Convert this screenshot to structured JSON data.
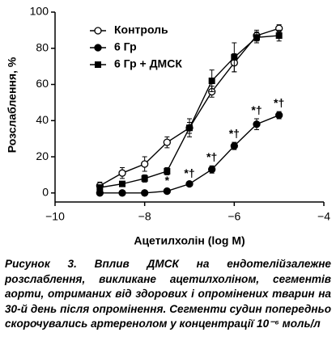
{
  "chart_data": {
    "type": "line",
    "ylabel": "Розслаблення, %",
    "xlabel": "Ацетилхолін (log M)",
    "x": [
      -9,
      -8.5,
      -8,
      -7.5,
      -7,
      -6.5,
      -6,
      -5.5,
      -5
    ],
    "xlim": [
      -10,
      -4
    ],
    "xticks": [
      {
        "value": -10,
        "label": "−10"
      },
      {
        "value": -8,
        "label": "−8"
      },
      {
        "value": -6,
        "label": "−6"
      },
      {
        "value": -4,
        "label": "−4"
      }
    ],
    "ylim": [
      -5,
      100
    ],
    "yticks": [
      0,
      20,
      40,
      60,
      80,
      100
    ],
    "grid": false,
    "legend": "upper left",
    "series": [
      {
        "name": "Контроль",
        "color": "#000000",
        "marker": "open-circle",
        "values": [
          4,
          11,
          16,
          28,
          36,
          56,
          72,
          87,
          91
        ],
        "errors": [
          2,
          3,
          4,
          3,
          3,
          3,
          5,
          3,
          2
        ]
      },
      {
        "name": "6 Гр",
        "color": "#000000",
        "marker": "filled-circle",
        "values": [
          0,
          0,
          0,
          1,
          5,
          13,
          26,
          38,
          43
        ],
        "errors": [
          1,
          1,
          1,
          1,
          1,
          2,
          2,
          3,
          2
        ],
        "point_annotations": [
          null,
          null,
          null,
          "*",
          "*†",
          "*†",
          "*†",
          "*†",
          "*†"
        ]
      },
      {
        "name": "6 Гр + ДМСК",
        "color": "#000000",
        "marker": "square",
        "values": [
          3,
          5,
          8,
          12,
          36,
          62,
          75,
          86,
          87
        ],
        "errors": [
          1,
          1,
          2,
          2,
          5,
          6,
          8,
          3,
          3
        ]
      }
    ]
  },
  "caption": {
    "label": "Рисунок 3.",
    "text": "Вплив ДМСК на ендотелійзалежне розслаблення, викликане ацетилхоліном, сегментів аорти, отриманих від здорових і опромінених тварин на 30-й день після опромінення. Сегменти судин попередньо скорочувались артеренолом у концентрації 10⁻⁶ моль/л"
  }
}
